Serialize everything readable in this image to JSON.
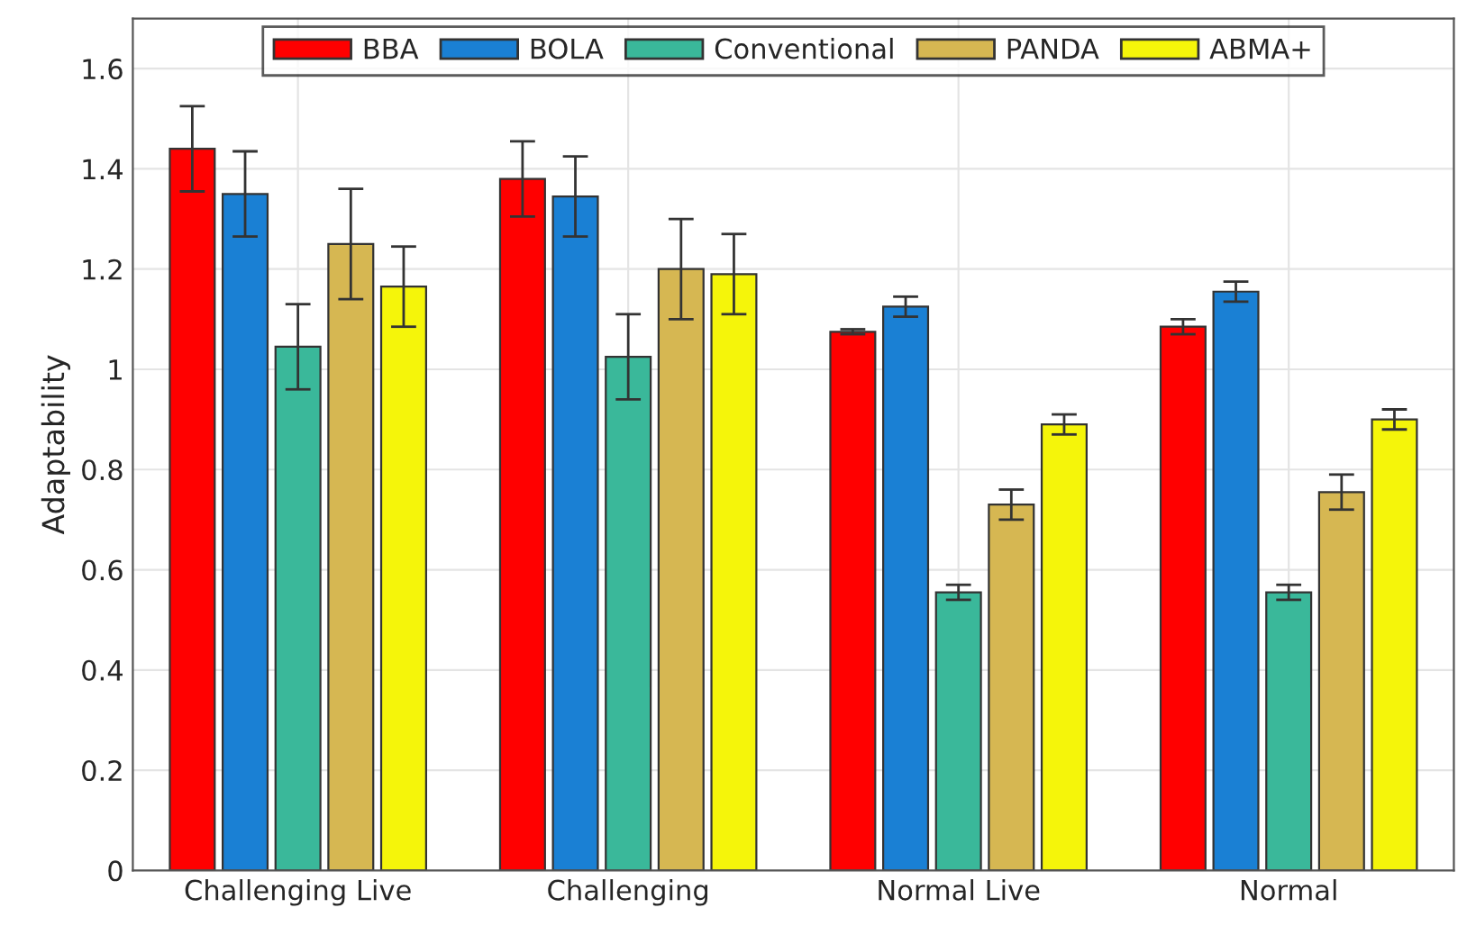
{
  "chart_data": {
    "type": "bar",
    "ylabel": "Adaptability",
    "categories": [
      "Challenging Live",
      "Challenging",
      "Normal Live",
      "Normal"
    ],
    "series": [
      {
        "name": "BBA",
        "color": "#ff0000",
        "values": [
          1.44,
          1.38,
          1.075,
          1.085
        ],
        "errors": [
          0.085,
          0.075,
          0.005,
          0.015
        ]
      },
      {
        "name": "BOLA",
        "color": "#1a80d4",
        "values": [
          1.35,
          1.345,
          1.125,
          1.155
        ],
        "errors": [
          0.085,
          0.08,
          0.02,
          0.02
        ]
      },
      {
        "name": "Conventional",
        "color": "#3ab89a",
        "values": [
          1.045,
          1.025,
          0.555,
          0.555
        ],
        "errors": [
          0.085,
          0.085,
          0.015,
          0.015
        ]
      },
      {
        "name": "PANDA",
        "color": "#d6b752",
        "values": [
          1.25,
          1.2,
          0.73,
          0.755
        ],
        "errors": [
          0.11,
          0.1,
          0.03,
          0.035
        ]
      },
      {
        "name": "ABMA+",
        "color": "#f5f50a",
        "values": [
          1.165,
          1.19,
          0.89,
          0.9
        ],
        "errors": [
          0.08,
          0.08,
          0.02,
          0.02
        ]
      }
    ],
    "ylim": [
      0,
      1.7
    ],
    "yticks": [
      0,
      0.2,
      0.4,
      0.6,
      0.8,
      1,
      1.2,
      1.4,
      1.6
    ],
    "grid": true,
    "legend": "top"
  }
}
